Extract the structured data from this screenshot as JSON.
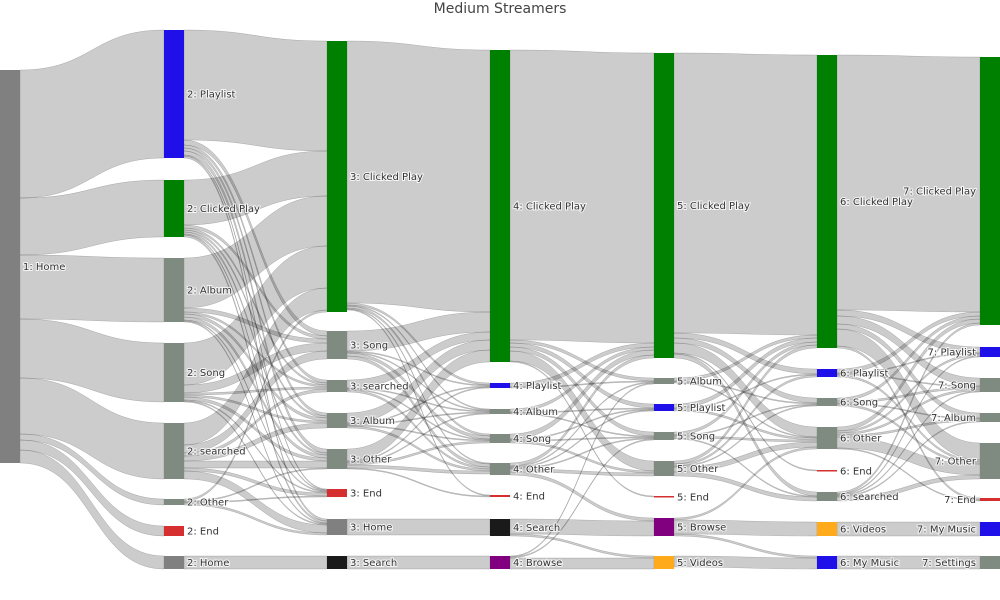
{
  "chart_data": {
    "type": "sankey",
    "title": "Medium Streamers",
    "link_color": "rgba(0,0,0,0.2)",
    "nodes": [
      {
        "id": "1H",
        "label": "1: Home",
        "color": "#808080",
        "column": 1
      },
      {
        "id": "2P",
        "label": "2: Playlist",
        "color": "#1f0fe8",
        "column": 2
      },
      {
        "id": "2C",
        "label": "2: Clicked Play",
        "color": "#008000",
        "column": 2
      },
      {
        "id": "2A",
        "label": "2: Album",
        "color": "#7f8a80",
        "column": 2
      },
      {
        "id": "2S",
        "label": "2: Song",
        "color": "#7f8a80",
        "column": 2
      },
      {
        "id": "2Q",
        "label": "2: searched",
        "color": "#7f8a80",
        "column": 2
      },
      {
        "id": "2O",
        "label": "2: Other",
        "color": "#7f8a80",
        "column": 2
      },
      {
        "id": "2E",
        "label": "2: End",
        "color": "#d62f2f",
        "column": 2
      },
      {
        "id": "2H",
        "label": "2: Home",
        "color": "#808080",
        "column": 2
      },
      {
        "id": "3C",
        "label": "3: Clicked Play",
        "color": "#008000",
        "column": 3
      },
      {
        "id": "3S",
        "label": "3: Song",
        "color": "#7f8a80",
        "column": 3
      },
      {
        "id": "3Q",
        "label": "3: searched",
        "color": "#7f8a80",
        "column": 3
      },
      {
        "id": "3A",
        "label": "3: Album",
        "color": "#7f8a80",
        "column": 3
      },
      {
        "id": "3O",
        "label": "3: Other",
        "color": "#7f8a80",
        "column": 3
      },
      {
        "id": "3E",
        "label": "3: End",
        "color": "#d62f2f",
        "column": 3
      },
      {
        "id": "3H",
        "label": "3: Home",
        "color": "#808080",
        "column": 3
      },
      {
        "id": "3X",
        "label": "3: Search",
        "color": "#1a1a1a",
        "column": 3
      },
      {
        "id": "4C",
        "label": "4: Clicked Play",
        "color": "#008000",
        "column": 4
      },
      {
        "id": "4P",
        "label": "4: Playlist",
        "color": "#1f0fe8",
        "column": 4
      },
      {
        "id": "4A",
        "label": "4: Album",
        "color": "#7f8a80",
        "column": 4
      },
      {
        "id": "4S",
        "label": "4: Song",
        "color": "#7f8a80",
        "column": 4
      },
      {
        "id": "4O",
        "label": "4: Other",
        "color": "#7f8a80",
        "column": 4
      },
      {
        "id": "4E",
        "label": "4: End",
        "color": "#d62f2f",
        "column": 4
      },
      {
        "id": "4X",
        "label": "4: Search",
        "color": "#1a1a1a",
        "column": 4
      },
      {
        "id": "4B",
        "label": "4: Browse",
        "color": "#800080",
        "column": 4
      },
      {
        "id": "5C",
        "label": "5: Clicked Play",
        "color": "#008000",
        "column": 5
      },
      {
        "id": "5A",
        "label": "5: Album",
        "color": "#7f8a80",
        "column": 5
      },
      {
        "id": "5P",
        "label": "5: Playlist",
        "color": "#1f0fe8",
        "column": 5
      },
      {
        "id": "5S",
        "label": "5: Song",
        "color": "#7f8a80",
        "column": 5
      },
      {
        "id": "5O",
        "label": "5: Other",
        "color": "#7f8a80",
        "column": 5
      },
      {
        "id": "5E",
        "label": "5: End",
        "color": "#d62f2f",
        "column": 5
      },
      {
        "id": "5B",
        "label": "5: Browse",
        "color": "#800080",
        "column": 5
      },
      {
        "id": "5V",
        "label": "5: Videos",
        "color": "#ffaa1a",
        "column": 5
      },
      {
        "id": "6C",
        "label": "6: Clicked Play",
        "color": "#008000",
        "column": 6
      },
      {
        "id": "6P",
        "label": "6: Playlist",
        "color": "#1f0fe8",
        "column": 6
      },
      {
        "id": "6S",
        "label": "6: Song",
        "color": "#7f8a80",
        "column": 6
      },
      {
        "id": "6O",
        "label": "6: Other",
        "color": "#7f8a80",
        "column": 6
      },
      {
        "id": "6E",
        "label": "6: End",
        "color": "#d62f2f",
        "column": 6
      },
      {
        "id": "6Q",
        "label": "6: searched",
        "color": "#7f8a80",
        "column": 6
      },
      {
        "id": "6V",
        "label": "6: Videos",
        "color": "#ffaa1a",
        "column": 6
      },
      {
        "id": "6M",
        "label": "6: My Music",
        "color": "#1f0fe8",
        "column": 6
      },
      {
        "id": "7C",
        "label": "7: Clicked Play",
        "color": "#008000",
        "column": 7
      },
      {
        "id": "7P",
        "label": "7: Playlist",
        "color": "#1f0fe8",
        "column": 7
      },
      {
        "id": "7S",
        "label": "7: Song",
        "color": "#7f8a80",
        "column": 7
      },
      {
        "id": "7A",
        "label": "7: Album",
        "color": "#7f8a80",
        "column": 7
      },
      {
        "id": "7O",
        "label": "7: Other",
        "color": "#7f8a80",
        "column": 7
      },
      {
        "id": "7E",
        "label": "7: End",
        "color": "#d62f2f",
        "column": 7
      },
      {
        "id": "7M",
        "label": "7: My Music",
        "color": "#1f0fe8",
        "column": 7
      },
      {
        "id": "7T",
        "label": "7: Settings",
        "color": "#7f8a80",
        "column": 7
      }
    ],
    "links": [
      [
        "1H",
        "2P",
        128
      ],
      [
        "1H",
        "2C",
        57
      ],
      [
        "1H",
        "2A",
        64
      ],
      [
        "1H",
        "2S",
        59
      ],
      [
        "1H",
        "2Q",
        56
      ],
      [
        "1H",
        "2O",
        6
      ],
      [
        "1H",
        "2E",
        10
      ],
      [
        "1H",
        "2H",
        13
      ],
      [
        "2P",
        "3C",
        110
      ],
      [
        "2P",
        "3S",
        5
      ],
      [
        "2P",
        "3Q",
        3
      ],
      [
        "2P",
        "3A",
        3
      ],
      [
        "2P",
        "3O",
        4
      ],
      [
        "2P",
        "3E",
        1
      ],
      [
        "2P",
        "3H",
        2
      ],
      [
        "2C",
        "3C",
        45
      ],
      [
        "2C",
        "3S",
        3
      ],
      [
        "2C",
        "3Q",
        2
      ],
      [
        "2C",
        "3A",
        2
      ],
      [
        "2C",
        "3O",
        2
      ],
      [
        "2C",
        "3E",
        1
      ],
      [
        "2C",
        "3H",
        2
      ],
      [
        "2A",
        "3C",
        50
      ],
      [
        "2A",
        "3S",
        4
      ],
      [
        "2A",
        "3Q",
        2
      ],
      [
        "2A",
        "3A",
        3
      ],
      [
        "2A",
        "3O",
        3
      ],
      [
        "2A",
        "3E",
        1
      ],
      [
        "2A",
        "3H",
        1
      ],
      [
        "2S",
        "3C",
        42
      ],
      [
        "2S",
        "3S",
        8
      ],
      [
        "2S",
        "3Q",
        2
      ],
      [
        "2S",
        "3A",
        2
      ],
      [
        "2S",
        "3O",
        3
      ],
      [
        "2S",
        "3E",
        1
      ],
      [
        "2S",
        "3H",
        1
      ],
      [
        "2Q",
        "3C",
        22
      ],
      [
        "2Q",
        "3S",
        8
      ],
      [
        "2Q",
        "3Q",
        3
      ],
      [
        "2Q",
        "3A",
        5
      ],
      [
        "2Q",
        "3O",
        7
      ],
      [
        "2Q",
        "3E",
        3
      ],
      [
        "2Q",
        "3H",
        8
      ],
      [
        "2O",
        "3C",
        2
      ],
      [
        "2O",
        "3O",
        1
      ],
      [
        "2O",
        "3E",
        1
      ],
      [
        "2O",
        "3H",
        2
      ],
      [
        "2H",
        "3X",
        13
      ],
      [
        "3C",
        "4C",
        262
      ],
      [
        "3C",
        "4P",
        2
      ],
      [
        "3C",
        "4A",
        1
      ],
      [
        "3C",
        "4S",
        2
      ],
      [
        "3C",
        "4O",
        1
      ],
      [
        "3C",
        "4E",
        1
      ],
      [
        "3S",
        "4C",
        20
      ],
      [
        "3S",
        "4P",
        1
      ],
      [
        "3S",
        "4A",
        1
      ],
      [
        "3S",
        "4S",
        3
      ],
      [
        "3S",
        "4O",
        3
      ],
      [
        "3Q",
        "4C",
        8
      ],
      [
        "3Q",
        "4A",
        1
      ],
      [
        "3Q",
        "4S",
        1
      ],
      [
        "3Q",
        "4O",
        2
      ],
      [
        "3A",
        "4C",
        10
      ],
      [
        "3A",
        "4P",
        1
      ],
      [
        "3A",
        "4A",
        1
      ],
      [
        "3A",
        "4S",
        1
      ],
      [
        "3A",
        "4O",
        2
      ],
      [
        "3O",
        "4C",
        12
      ],
      [
        "3O",
        "4P",
        1
      ],
      [
        "3O",
        "4A",
        1
      ],
      [
        "3O",
        "4S",
        2
      ],
      [
        "3O",
        "4O",
        3
      ],
      [
        "3O",
        "4E",
        1
      ],
      [
        "3H",
        "4X",
        16
      ],
      [
        "3X",
        "4B",
        13
      ],
      [
        "4C",
        "5C",
        290
      ],
      [
        "4C",
        "5A",
        3
      ],
      [
        "4C",
        "5P",
        4
      ],
      [
        "4C",
        "5S",
        4
      ],
      [
        "4C",
        "5O",
        10
      ],
      [
        "4C",
        "5E",
        1
      ],
      [
        "4P",
        "5C",
        4
      ],
      [
        "4P",
        "5A",
        1
      ],
      [
        "4A",
        "5C",
        3
      ],
      [
        "4A",
        "5P",
        1
      ],
      [
        "4A",
        "5S",
        1
      ],
      [
        "4S",
        "5C",
        5
      ],
      [
        "4S",
        "5P",
        1
      ],
      [
        "4S",
        "5S",
        1
      ],
      [
        "4S",
        "5O",
        2
      ],
      [
        "4O",
        "5C",
        3
      ],
      [
        "4O",
        "5A",
        1
      ],
      [
        "4O",
        "5P",
        1
      ],
      [
        "4O",
        "5S",
        1
      ],
      [
        "4O",
        "5O",
        3
      ],
      [
        "4O",
        "5B",
        3
      ],
      [
        "4X",
        "5B",
        15
      ],
      [
        "4X",
        "5V",
        2
      ],
      [
        "4B",
        "5V",
        11
      ],
      [
        "4B",
        "5A",
        1
      ],
      [
        "4B",
        "5S",
        1
      ],
      [
        "5C",
        "6C",
        280
      ],
      [
        "5C",
        "6P",
        5
      ],
      [
        "5C",
        "6S",
        5
      ],
      [
        "5C",
        "6O",
        10
      ],
      [
        "5C",
        "6E",
        1
      ],
      [
        "5C",
        "6Q",
        4
      ],
      [
        "5A",
        "6C",
        3
      ],
      [
        "5A",
        "6S",
        1
      ],
      [
        "5A",
        "6O",
        1
      ],
      [
        "5P",
        "6C",
        4
      ],
      [
        "5P",
        "6P",
        1
      ],
      [
        "5P",
        "6O",
        2
      ],
      [
        "5S",
        "6C",
        3
      ],
      [
        "5S",
        "6S",
        1
      ],
      [
        "5S",
        "6O",
        2
      ],
      [
        "5S",
        "6Q",
        1
      ],
      [
        "5O",
        "6C",
        3
      ],
      [
        "5O",
        "6P",
        2
      ],
      [
        "5O",
        "6S",
        1
      ],
      [
        "5O",
        "6O",
        5
      ],
      [
        "5O",
        "6Q",
        4
      ],
      [
        "5B",
        "6V",
        14
      ],
      [
        "5B",
        "6O",
        2
      ],
      [
        "5B",
        "6M",
        2
      ],
      [
        "5V",
        "6M",
        11
      ],
      [
        "6C",
        "7C",
        255
      ],
      [
        "6C",
        "7P",
        6
      ],
      [
        "6C",
        "7S",
        8
      ],
      [
        "6C",
        "7A",
        5
      ],
      [
        "6C",
        "7O",
        17
      ],
      [
        "6C",
        "7E",
        2
      ],
      [
        "6P",
        "7C",
        4
      ],
      [
        "6P",
        "7P",
        1
      ],
      [
        "6P",
        "7S",
        1
      ],
      [
        "6P",
        "7O",
        2
      ],
      [
        "6S",
        "7C",
        3
      ],
      [
        "6S",
        "7S",
        2
      ],
      [
        "6S",
        "7A",
        1
      ],
      [
        "6S",
        "7O",
        2
      ],
      [
        "6O",
        "7C",
        4
      ],
      [
        "6O",
        "7P",
        2
      ],
      [
        "6O",
        "7S",
        2
      ],
      [
        "6O",
        "7A",
        2
      ],
      [
        "6O",
        "7O",
        11
      ],
      [
        "6O",
        "7E",
        1
      ],
      [
        "6Q",
        "7C",
        2
      ],
      [
        "6Q",
        "7P",
        1
      ],
      [
        "6Q",
        "7S",
        1
      ],
      [
        "6Q",
        "7A",
        1
      ],
      [
        "6Q",
        "7O",
        4
      ],
      [
        "6V",
        "7M",
        14
      ],
      [
        "6M",
        "7T",
        13
      ]
    ]
  }
}
